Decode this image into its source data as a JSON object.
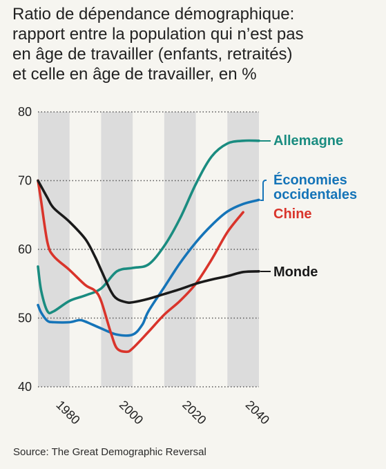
{
  "title_lines": [
    "Ratio de dépendance démographique:",
    "rapport entre la population qui n’est pas",
    "en âge de travailler (enfants, retraités)",
    "et celle en âge de travailler, en %"
  ],
  "source": "Source: The Great Demographic Reversal",
  "chart_data": {
    "type": "line",
    "title": "Ratio de dépendance démographique: rapport entre la population qui n’est pas en âge de travailler (enfants, retraités) et celle en âge de travailler, en %",
    "xlabel": "",
    "ylabel": "",
    "xlim": [
      1970,
      2040
    ],
    "ylim": [
      40,
      80
    ],
    "x_ticks": [
      1980,
      2000,
      2020,
      2040
    ],
    "y_ticks": [
      40,
      50,
      60,
      70,
      80
    ],
    "grid": "horizontal dotted lines with alternating shaded decade bands",
    "legend": "labels at line ends on the right",
    "series": [
      {
        "name": "Allemagne",
        "color": "#1a8c80",
        "points": [
          [
            1970,
            57.5
          ],
          [
            1971,
            54
          ],
          [
            1973,
            51
          ],
          [
            1975,
            51
          ],
          [
            1980,
            52.5
          ],
          [
            1985,
            53.3
          ],
          [
            1990,
            54.3
          ],
          [
            1995,
            56.8
          ],
          [
            2000,
            57.3
          ],
          [
            2005,
            57.8
          ],
          [
            2010,
            60.5
          ],
          [
            2015,
            64.5
          ],
          [
            2020,
            69.5
          ],
          [
            2025,
            73.5
          ],
          [
            2030,
            75.4
          ],
          [
            2035,
            75.8
          ],
          [
            2040,
            75.8
          ]
        ]
      },
      {
        "name": "Économies occidentales",
        "color": "#1574b8",
        "points": [
          [
            1970,
            51.9
          ],
          [
            1971,
            50.8
          ],
          [
            1973,
            49.6
          ],
          [
            1975,
            49.4
          ],
          [
            1980,
            49.4
          ],
          [
            1983,
            49.7
          ],
          [
            1985,
            49.5
          ],
          [
            1990,
            48.5
          ],
          [
            1995,
            47.6
          ],
          [
            2000,
            47.6
          ],
          [
            2003,
            49
          ],
          [
            2005,
            51
          ],
          [
            2010,
            54.5
          ],
          [
            2015,
            58
          ],
          [
            2020,
            61
          ],
          [
            2025,
            63.5
          ],
          [
            2030,
            65.5
          ],
          [
            2035,
            66.6
          ],
          [
            2040,
            67.2
          ]
        ]
      },
      {
        "name": "Chine",
        "color": "#d9342b",
        "points": [
          [
            1970,
            70
          ],
          [
            1971,
            67
          ],
          [
            1973,
            61
          ],
          [
            1975,
            59
          ],
          [
            1980,
            57
          ],
          [
            1985,
            54.8
          ],
          [
            1988,
            54
          ],
          [
            1990,
            52.5
          ],
          [
            1993,
            48
          ],
          [
            1995,
            45.6
          ],
          [
            1998,
            45.1
          ],
          [
            2000,
            45.6
          ],
          [
            2005,
            48
          ],
          [
            2010,
            50.5
          ],
          [
            2015,
            52.5
          ],
          [
            2020,
            55
          ],
          [
            2025,
            58.5
          ],
          [
            2030,
            62.5
          ],
          [
            2035,
            65.4
          ]
        ]
      },
      {
        "name": "Monde",
        "color": "#1a1a1a",
        "points": [
          [
            1970,
            70
          ],
          [
            1973,
            67.5
          ],
          [
            1975,
            66
          ],
          [
            1980,
            64
          ],
          [
            1985,
            61.5
          ],
          [
            1988,
            59
          ],
          [
            1990,
            57
          ],
          [
            1993,
            54
          ],
          [
            1995,
            52.8
          ],
          [
            1998,
            52.3
          ],
          [
            2000,
            52.3
          ],
          [
            2005,
            52.8
          ],
          [
            2010,
            53.5
          ],
          [
            2015,
            54.2
          ],
          [
            2020,
            55
          ],
          [
            2025,
            55.6
          ],
          [
            2030,
            56.1
          ],
          [
            2035,
            56.7
          ],
          [
            2040,
            56.8
          ]
        ]
      }
    ]
  },
  "series_labels": {
    "allemagne": "Allemagne",
    "occidentales_line1": "Économies",
    "occidentales_line2": "occidentales",
    "chine": "Chine",
    "monde": "Monde"
  }
}
